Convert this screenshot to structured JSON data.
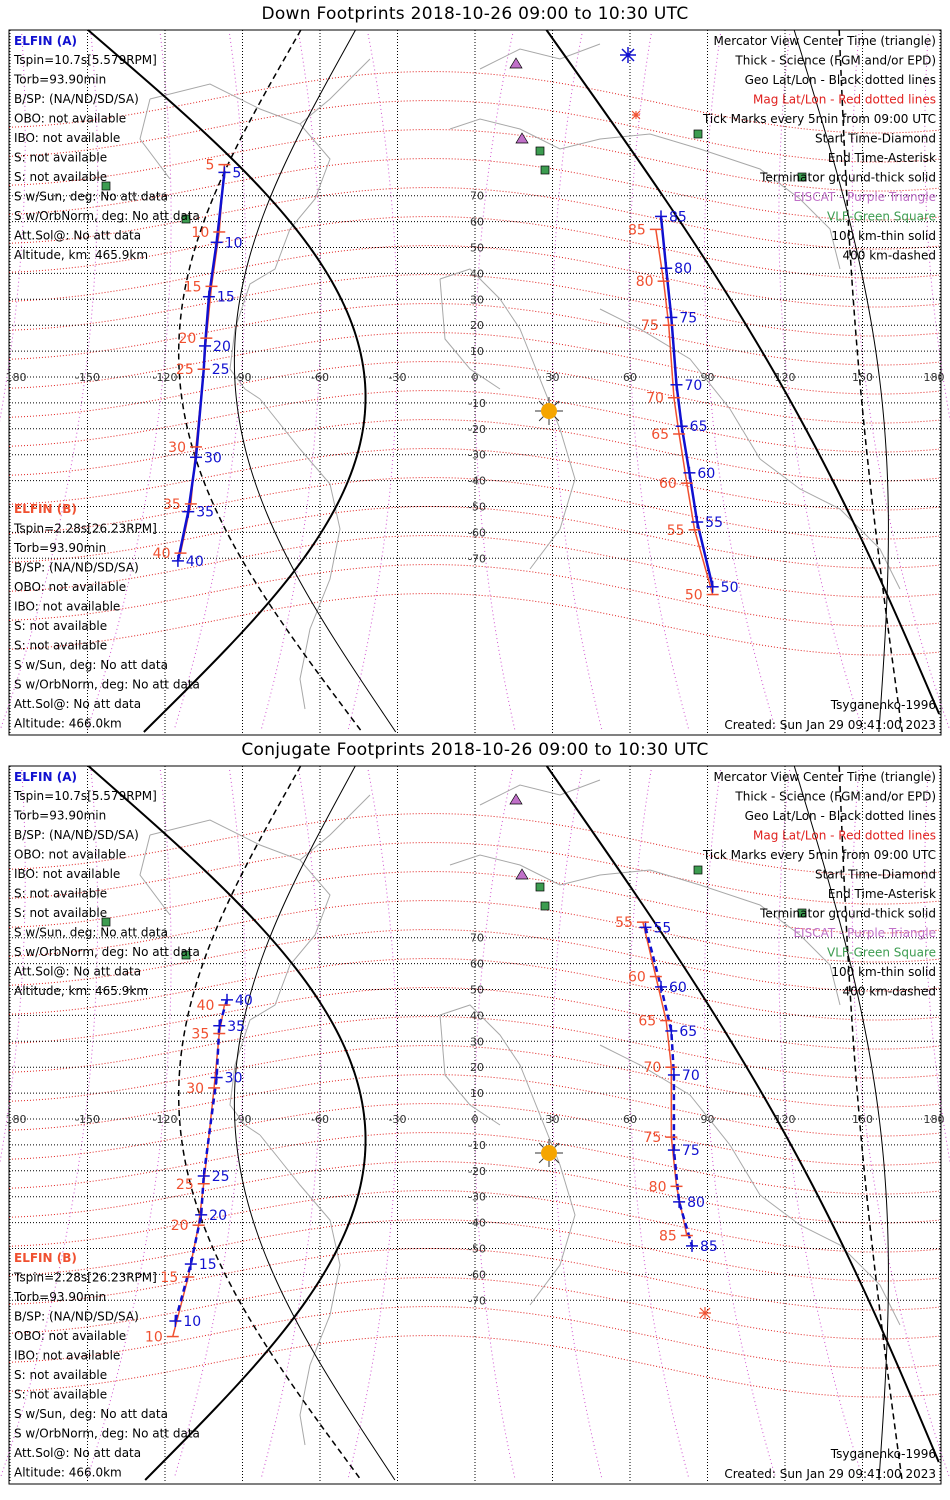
{
  "panels": [
    {
      "title": "Down Footprints 2018-10-26 09:00 to 10:30 UTC",
      "elfin_a": {
        "name": "ELFIN (A)",
        "lines": [
          "Tspin=10.7s[5.579RPM]",
          "Torb=93.90min",
          "B/SP: (NA/ND/SD/SA)",
          "OBO: not available",
          "IBO: not available",
          "S: not available",
          "S: not available",
          "S w/Sun, deg: No att data",
          "S w/OrbNorm, deg: No att data",
          "Att.Sol@: No att data",
          "Altitude, km: 465.9km"
        ]
      },
      "elfin_b": {
        "name": "ELFIN (B)",
        "lines": [
          "Tspin=2.28s[26.23RPM]",
          "Torb=93.90min",
          "B/SP: (NA/ND/SD/SA)",
          "OBO: not available",
          "IBO: not available",
          "S: not available",
          "S: not available",
          "S w/Sun, deg: No att data",
          "S w/OrbNorm, deg: No att data",
          "Att.Sol@: No att data",
          "Altitude: 466.0km"
        ]
      },
      "track_west": {
        "blue": [
          {
            "t": "5",
            "lon": -97,
            "lat": 79
          },
          {
            "t": "10",
            "lon": -100,
            "lat": 52
          },
          {
            "t": "15",
            "lon": -103,
            "lat": 31
          },
          {
            "t": "20",
            "lon": -104.5,
            "lat": 12
          },
          {
            "t": "25",
            "lon": -105,
            "lat": 3
          },
          {
            "t": "30",
            "lon": -108,
            "lat": -31
          },
          {
            "t": "35",
            "lon": -111,
            "lat": -52
          },
          {
            "t": "40",
            "lon": -115,
            "lat": -71
          }
        ],
        "red": [
          {
            "t": "5",
            "lon": -97,
            "lat": 82
          },
          {
            "t": "10",
            "lon": -99,
            "lat": 56
          },
          {
            "t": "15",
            "lon": -102,
            "lat": 35
          },
          {
            "t": "20",
            "lon": -104,
            "lat": 15
          },
          {
            "t": "25",
            "lon": -105,
            "lat": 3
          },
          {
            "t": "30",
            "lon": -108,
            "lat": -27
          },
          {
            "t": "35",
            "lon": -110,
            "lat": -49
          },
          {
            "t": "40",
            "lon": -114,
            "lat": -68
          }
        ]
      },
      "track_east": {
        "blue": [
          {
            "t": "85",
            "lon": 72,
            "lat": 62
          },
          {
            "t": "80",
            "lon": 74,
            "lat": 42
          },
          {
            "t": "75",
            "lon": 76,
            "lat": 23
          },
          {
            "t": "70",
            "lon": 78,
            "lat": -3
          },
          {
            "t": "65",
            "lon": 80,
            "lat": -19
          },
          {
            "t": "60",
            "lon": 83,
            "lat": -37
          },
          {
            "t": "55",
            "lon": 86,
            "lat": -56
          },
          {
            "t": "50",
            "lon": 92,
            "lat": -81
          }
        ],
        "red": [
          {
            "t": "85",
            "lon": 70,
            "lat": 57
          },
          {
            "t": "80",
            "lon": 73,
            "lat": 37
          },
          {
            "t": "75",
            "lon": 75,
            "lat": 20
          },
          {
            "t": "70",
            "lon": 77,
            "lat": -8
          },
          {
            "t": "65",
            "lon": 79,
            "lat": -22
          },
          {
            "t": "60",
            "lon": 82,
            "lat": -41
          },
          {
            "t": "55",
            "lon": 85,
            "lat": -59
          },
          {
            "t": "50",
            "lon": 92,
            "lat": -84
          }
        ]
      },
      "footer_left": "",
      "footer_right": "Tsyganenko-1996",
      "created": "Created: Sun Jan 29 09:41:00 2023"
    },
    {
      "title": "Conjugate Footprints 2018-10-26 09:00 to 10:30 UTC",
      "elfin_a": {
        "name": "ELFIN (A)",
        "lines": [
          "Tspin=10.7s[5.579RPM]",
          "Torb=93.90min",
          "B/SP: (NA/ND/SD/SA)",
          "OBO: not available",
          "IBO: not available",
          "S: not available",
          "S: not available",
          "S w/Sun, deg: No att data",
          "S w/OrbNorm, deg: No att data",
          "Att.Sol@: No att data",
          "Altitude, km: 465.9km"
        ]
      },
      "elfin_b": {
        "name": "ELFIN (B)",
        "lines": [
          "Tspin=2.28s[26.23RPM]",
          "Torb=93.90min",
          "B/SP: (NA/ND/SD/SA)",
          "OBO: not available",
          "IBO: not available",
          "S: not available",
          "S: not available",
          "S w/Sun, deg: No att data",
          "S w/OrbNorm, deg: No att data",
          "Att.Sol@: No att data",
          "Altitude: 466.0km"
        ]
      },
      "track_west": {
        "blue": [
          {
            "t": "40",
            "lon": -96,
            "lat": 46
          },
          {
            "t": "35",
            "lon": -99,
            "lat": 36
          },
          {
            "t": "30",
            "lon": -100,
            "lat": 16
          },
          {
            "t": "25",
            "lon": -105,
            "lat": -22
          },
          {
            "t": "20",
            "lon": -106,
            "lat": -37
          },
          {
            "t": "15",
            "lon": -110,
            "lat": -56
          },
          {
            "t": "10",
            "lon": -116,
            "lat": -78
          }
        ],
        "red": [
          {
            "t": "40",
            "lon": -97,
            "lat": 44
          },
          {
            "t": "35",
            "lon": -99,
            "lat": 33
          },
          {
            "t": "30",
            "lon": -101,
            "lat": 12
          },
          {
            "t": "25",
            "lon": -105,
            "lat": -25
          },
          {
            "t": "20",
            "lon": -107,
            "lat": -41
          },
          {
            "t": "15",
            "lon": -111,
            "lat": -61
          },
          {
            "t": "10",
            "lon": -117,
            "lat": -84
          }
        ]
      },
      "track_east": {
        "blue": [
          {
            "t": "55",
            "lon": 66,
            "lat": 74
          },
          {
            "t": "60",
            "lon": 72,
            "lat": 51
          },
          {
            "t": "65",
            "lon": 76,
            "lat": 34
          },
          {
            "t": "70",
            "lon": 77,
            "lat": 17
          },
          {
            "t": "75",
            "lon": 77,
            "lat": -12
          },
          {
            "t": "80",
            "lon": 79,
            "lat": -32
          },
          {
            "t": "85",
            "lon": 84,
            "lat": -49
          }
        ],
        "red": [
          {
            "t": "55",
            "lon": 65,
            "lat": 76
          },
          {
            "t": "60",
            "lon": 70,
            "lat": 55
          },
          {
            "t": "65",
            "lon": 74,
            "lat": 38
          },
          {
            "t": "70",
            "lon": 76,
            "lat": 20
          },
          {
            "t": "75",
            "lon": 76,
            "lat": -7
          },
          {
            "t": "80",
            "lon": 78,
            "lat": -26
          },
          {
            "t": "85",
            "lon": 82,
            "lat": -45
          }
        ]
      },
      "footer_left": "",
      "footer_right": "Tsyganenko-1996",
      "created": "Created: Sun Jan 29 09:41:00 2023"
    }
  ],
  "legend": [
    {
      "text": "Mercator View Center Time (triangle)",
      "color": "#000000"
    },
    {
      "text": "Thick - Science (FGM and/or EPD)",
      "color": "#000000"
    },
    {
      "text": "Geo Lat/Lon - Black dotted lines",
      "color": "#000000"
    },
    {
      "text": "Mag Lat/Lon - Red dotted lines",
      "color": "#e0201e"
    },
    {
      "text": "Tick Marks every 5min from 09:00 UTC",
      "color": "#000000"
    },
    {
      "text": "Start Time-Diamond",
      "color": "#000000"
    },
    {
      "text": "End Time-Asterisk",
      "color": "#000000"
    },
    {
      "text": "Terminator ground-thick solid",
      "color": "#000000"
    },
    {
      "text": "EISCAT - Purple Triangle",
      "color": "#c070c8"
    },
    {
      "text": "VLF-Green Square",
      "color": "#3c9c50"
    },
    {
      "text": "100 km-thin solid",
      "color": "#000000"
    },
    {
      "text": "400 km-dashed",
      "color": "#000000"
    }
  ],
  "lon_ticks": [
    "180",
    "-150",
    "-120",
    "-90",
    "-60",
    "-30",
    "0",
    "30",
    "60",
    "90",
    "120",
    "150",
    "180"
  ],
  "lat_ticks": [
    "70",
    "60",
    "50",
    "40",
    "30",
    "20",
    "10",
    "-10",
    "-20",
    "-30",
    "-40",
    "-50",
    "-60",
    "-70"
  ],
  "colors": {
    "elfin_a": "#1010d0",
    "elfin_b": "#f05030",
    "mag_grid": "#e0201e",
    "geo_grid": "#000000",
    "mag_meridian": "#d050d0",
    "vlf": "#3c9c50",
    "eiscat": "#c070c8",
    "sun": "#f5a500"
  }
}
